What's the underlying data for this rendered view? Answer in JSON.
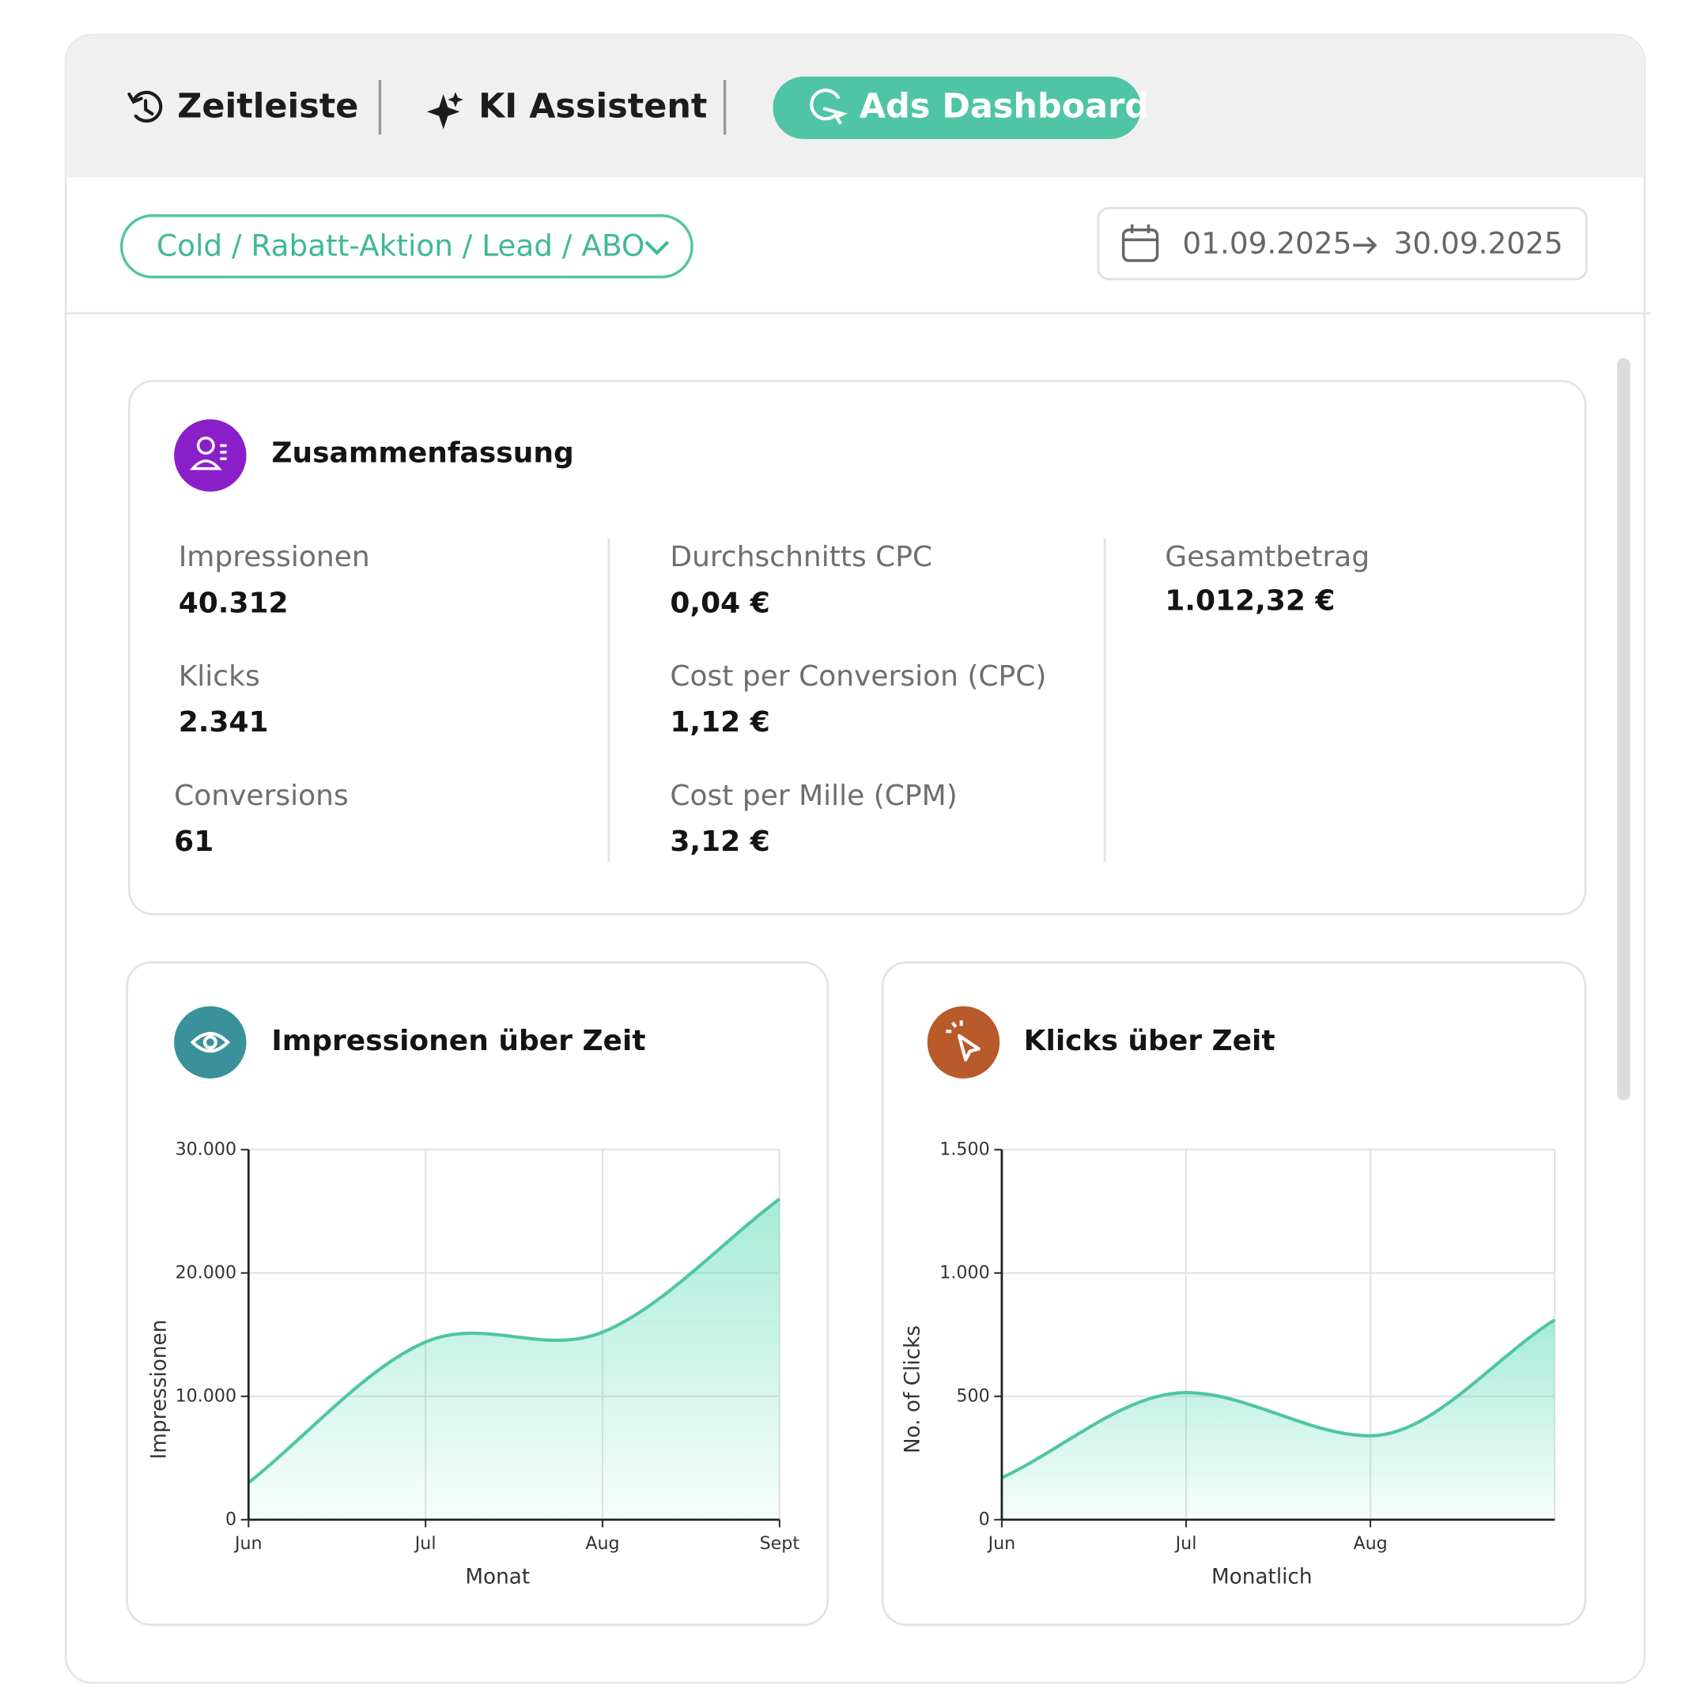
{
  "tabs": [
    "Zeitleiste",
    "KI Assistent",
    "Ads Dashboard"
  ],
  "filter": "Cold / Rabatt-Aktion / Lead / ABO",
  "date_range": {
    "start": "01.09.2025",
    "end": "30.09.2025"
  },
  "summary": {
    "title": "Zusammenfassung",
    "metrics": [
      {
        "label": "Impressionen",
        "value": "40.312"
      },
      {
        "label": "Klicks",
        "value": "2.341"
      },
      {
        "label": "Conversions",
        "value": "61"
      },
      {
        "label": "Durchschnitts CPC",
        "value": "0,04 €"
      },
      {
        "label": "Cost per Conversion (CPC)",
        "value": "1,12 €"
      },
      {
        "label": "Cost per Mille (CPM)",
        "value": "3,12 €"
      },
      {
        "label": "Gesamtbetrag",
        "value": "1.012,32 €"
      }
    ]
  },
  "chart_data": [
    {
      "type": "area",
      "title": "Impressionen über Zeit",
      "x_label": "Monat",
      "y_label": "Impressionen",
      "categories": [
        "Jun",
        "Jul",
        "Aug",
        "Sept"
      ],
      "values": [
        3000,
        14400,
        15200,
        26000
      ],
      "color": "#4fc5a5",
      "ylim": [
        0,
        30000
      ],
      "yticks": [
        0,
        {
          "value": 10000,
          "label": "10.000"
        },
        {
          "value": 20000,
          "label": "20.000"
        },
        {
          "value": 30000,
          "label": "30.000"
        }
      ],
      "grid": true
    },
    {
      "type": "area",
      "title": "Klicks über Zeit",
      "x_label": "Monatlich",
      "y_label": "No. of Clicks",
      "categories": [
        "Jun",
        "Jul",
        "Aug",
        null
      ],
      "values": [
        170,
        515,
        340,
        810
      ],
      "color": "#4fc5a5",
      "ylim": [
        0,
        1500
      ],
      "yticks": [
        0,
        500,
        {
          "value": 1000,
          "label": "1.000"
        },
        {
          "value": 1500,
          "label": "1.500"
        }
      ],
      "grid": true
    }
  ]
}
